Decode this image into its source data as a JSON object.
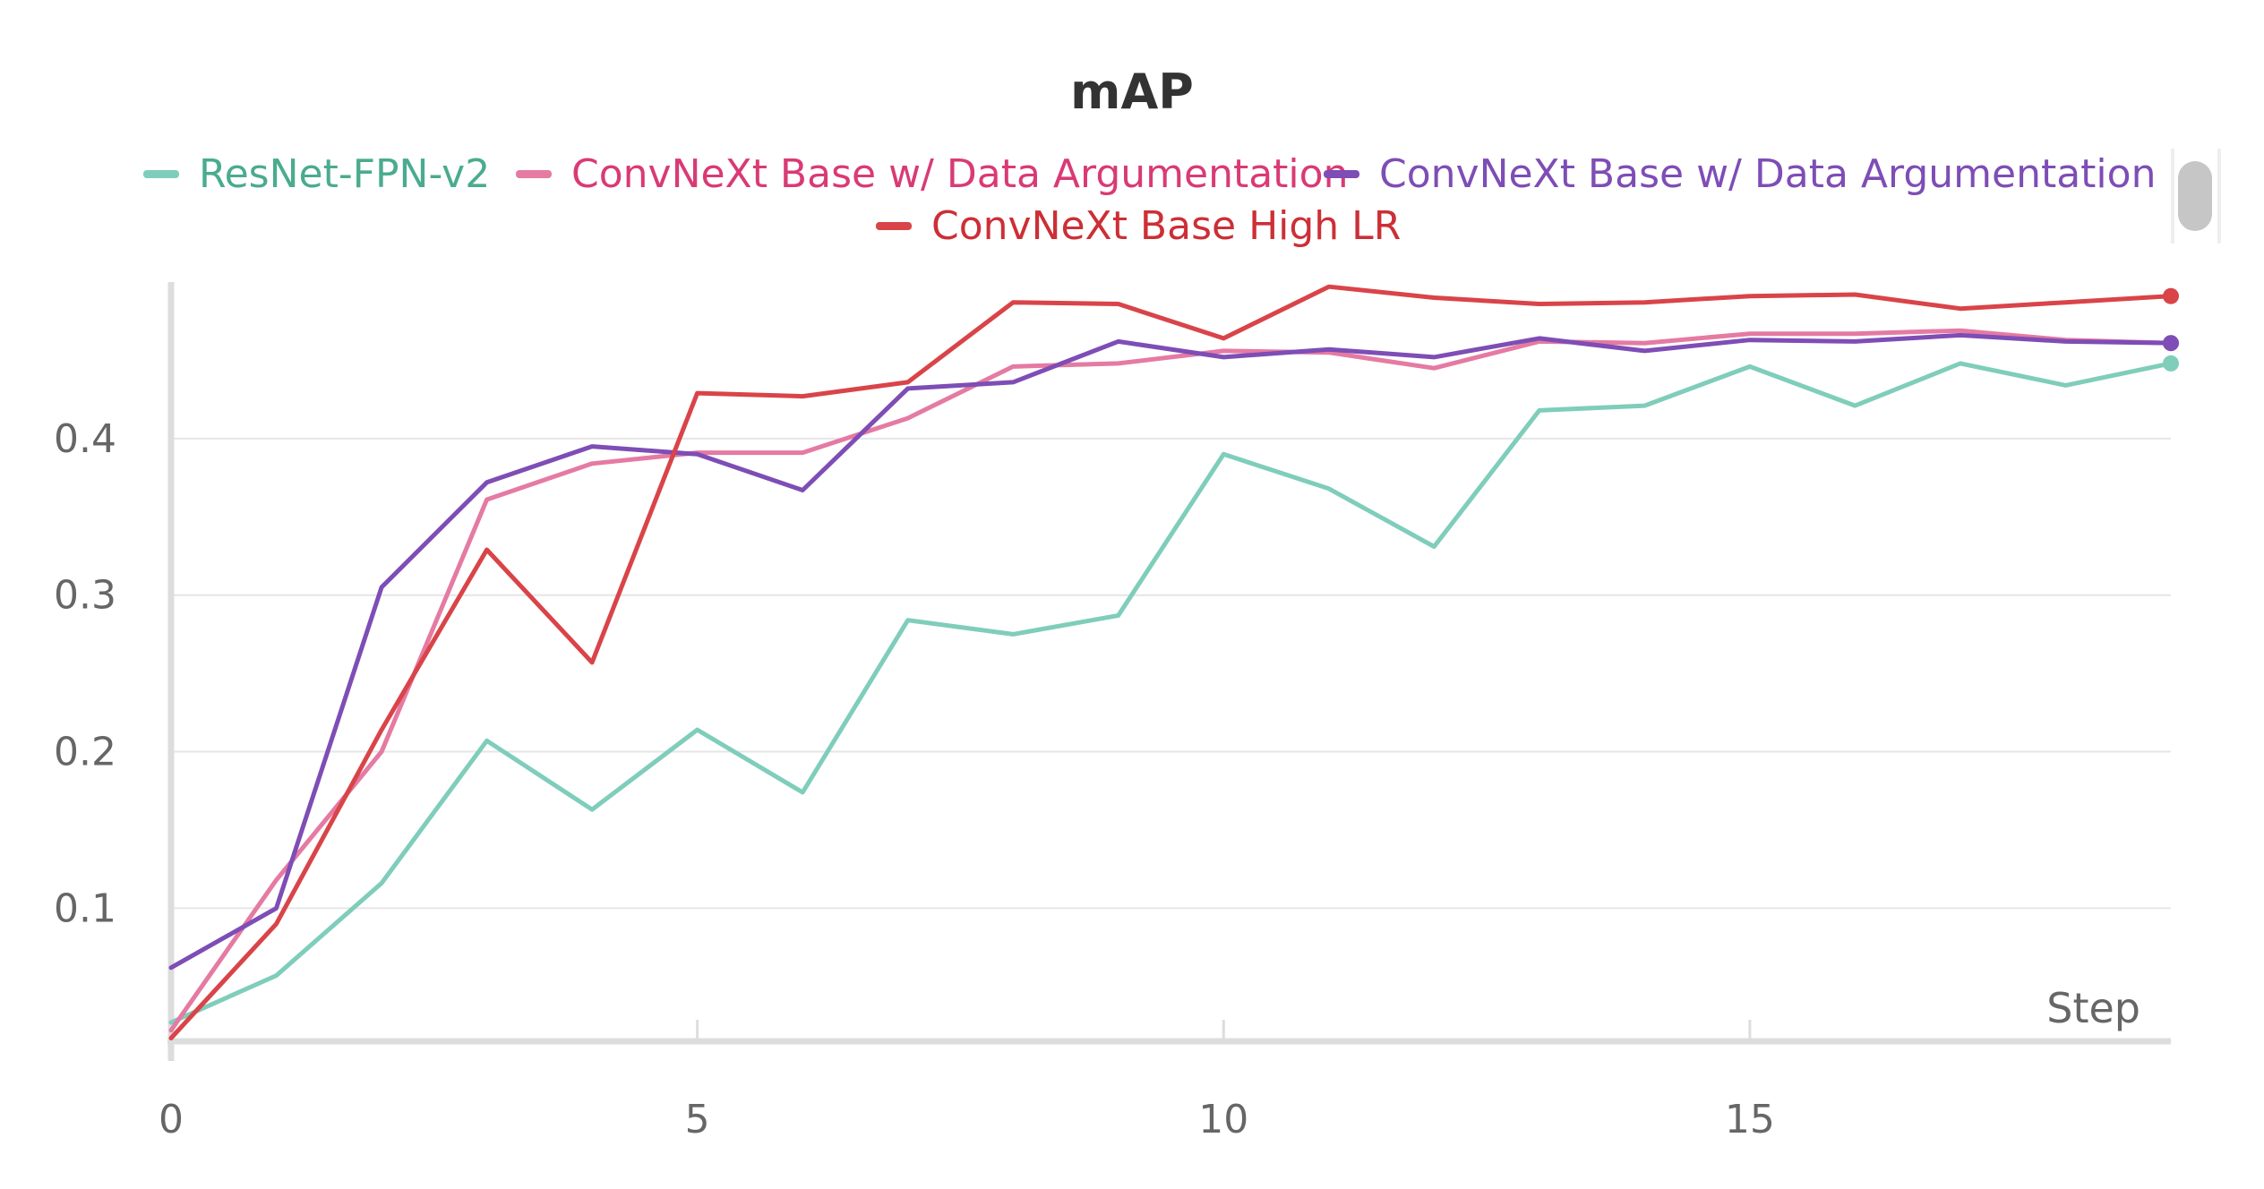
{
  "chart_data": {
    "type": "line",
    "title": "mAP",
    "xlabel": "Step",
    "ylabel": "",
    "xlim": [
      0,
      19
    ],
    "ylim": [
      0.015,
      0.5
    ],
    "x": [
      0,
      1,
      2,
      3,
      4,
      5,
      6,
      7,
      8,
      9,
      10,
      11,
      12,
      13,
      14,
      15,
      16,
      17,
      18,
      19
    ],
    "x_ticks": [
      "0",
      "5",
      "10",
      "15"
    ],
    "x_tick_values": [
      0,
      5,
      10,
      15
    ],
    "y_ticks": [
      "0.1",
      "0.2",
      "0.3",
      "0.4"
    ],
    "y_tick_values": [
      0.1,
      0.2,
      0.3,
      0.4
    ],
    "grid": true,
    "legend_position": "top-center",
    "series": [
      {
        "name": "ResNet-FPN-v2",
        "color": "#7fcdbb",
        "legend_text_color": "#4aab8f",
        "values": [
          0.027,
          0.057,
          0.116,
          0.207,
          0.163,
          0.214,
          0.174,
          0.284,
          0.275,
          0.287,
          0.39,
          0.368,
          0.331,
          0.418,
          0.421,
          0.446,
          0.421,
          0.448,
          0.434,
          0.448
        ]
      },
      {
        "name": "ConvNeXt Base w/ Data Argumentation",
        "color": "#e57aa2",
        "legend_text_color": "#d93a75",
        "values": [
          0.022,
          0.118,
          0.2,
          0.361,
          0.384,
          0.391,
          0.391,
          0.413,
          0.446,
          0.448,
          0.456,
          0.455,
          0.445,
          0.462,
          0.461,
          0.467,
          0.467,
          0.469,
          0.463,
          0.461
        ]
      },
      {
        "name": "ConvNeXt Base w/ Data Argumentation",
        "color": "#7e4db5",
        "legend_text_color": "#7e4db5",
        "values": [
          0.062,
          0.1,
          0.305,
          0.372,
          0.395,
          0.39,
          0.367,
          0.432,
          0.436,
          0.462,
          0.452,
          0.457,
          0.452,
          0.464,
          0.456,
          0.463,
          0.462,
          0.466,
          0.462,
          0.461
        ]
      },
      {
        "name": "ConvNeXt Base High LR",
        "color": "#d94449",
        "legend_text_color": "#cc2f36",
        "values": [
          0.017,
          0.09,
          0.214,
          0.329,
          0.257,
          0.429,
          0.427,
          0.436,
          0.487,
          0.486,
          0.464,
          0.497,
          0.49,
          0.486,
          0.487,
          0.491,
          0.492,
          0.483,
          0.487,
          0.491
        ]
      }
    ]
  }
}
